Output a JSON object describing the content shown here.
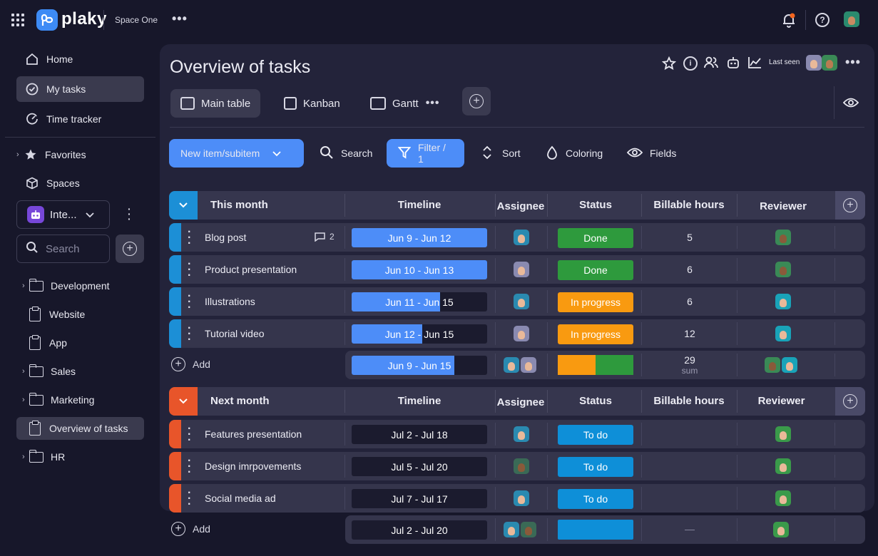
{
  "topbar": {
    "logo_text": "plaky",
    "space_name": "Space One",
    "more_label": "•••"
  },
  "sidebar": {
    "nav": [
      {
        "label": "Home",
        "icon": "home-icon"
      },
      {
        "label": "My tasks",
        "icon": "check-circle-icon"
      },
      {
        "label": "Time tracker",
        "icon": "clock-icon"
      }
    ],
    "favorites_label": "Favorites",
    "spaces_label": "Spaces",
    "workspace_label": "Inte...",
    "search_placeholder": "Search",
    "tree": [
      {
        "label": "Development",
        "type": "folder"
      },
      {
        "label": "Website",
        "type": "board"
      },
      {
        "label": "App",
        "type": "board"
      },
      {
        "label": "Sales",
        "type": "folder"
      },
      {
        "label": "Marketing",
        "type": "folder"
      },
      {
        "label": "Overview of tasks",
        "type": "board"
      },
      {
        "label": "HR",
        "type": "folder"
      }
    ]
  },
  "board": {
    "title": "Overview of tasks",
    "last_seen_label": "Last seen",
    "views": [
      {
        "label": "Main table"
      },
      {
        "label": "Kanban"
      },
      {
        "label": "Gantt"
      }
    ],
    "toolbar": {
      "new_item": "New item/subitem",
      "search": "Search",
      "filter": "Filter / 1",
      "sort": "Sort",
      "coloring": "Coloring",
      "fields": "Fields"
    }
  },
  "columns": {
    "timeline": "Timeline",
    "assignee": "Assignee",
    "status": "Status",
    "billable": "Billable hours",
    "reviewer": "Reviewer"
  },
  "groups": [
    {
      "name": "This month",
      "color": "#1c8fd6",
      "rows": [
        {
          "name": "Blog post",
          "comments": "2",
          "timeline": "Jun 9 - Jun 12",
          "fill": 1.0,
          "status": "Done",
          "status_color": "#2e9a3d",
          "hours": "5"
        },
        {
          "name": "Product presentation",
          "comments": "",
          "timeline": "Jun 10 - Jun 13",
          "fill": 1.0,
          "status": "Done",
          "status_color": "#2e9a3d",
          "hours": "6"
        },
        {
          "name": "Illustrations",
          "comments": "",
          "timeline": "Jun 11 - Jun 15",
          "fill": 0.65,
          "status": "In progress",
          "status_color": "#f99a10",
          "hours": "6"
        },
        {
          "name": "Tutorial video",
          "comments": "",
          "timeline": "Jun 12 - Jun 15",
          "fill": 0.52,
          "status": "In progress",
          "status_color": "#f99a10",
          "hours": "12"
        }
      ],
      "summary": {
        "timeline": "Jun 9 - Jun 15",
        "fill": 0.76,
        "hours": "29",
        "hours_sub": "sum"
      }
    },
    {
      "name": "Next month",
      "color": "#e8552a",
      "rows": [
        {
          "name": "Features presentation",
          "timeline": "Jul 2 - Jul 18",
          "fill": 0,
          "status": "To do",
          "status_color": "#0e8fd8",
          "hours": ""
        },
        {
          "name": "Design imrpovements",
          "timeline": "Jul 5  - Jul 20",
          "fill": 0,
          "status": "To do",
          "status_color": "#0e8fd8",
          "hours": ""
        },
        {
          "name": "Social media ad",
          "timeline": "Jul 7 - Jul 17",
          "fill": 0,
          "status": "To do",
          "status_color": "#0e8fd8",
          "hours": ""
        }
      ],
      "summary": {
        "timeline": "Jul 2 - Jul 20",
        "fill": 0,
        "hours": "—"
      }
    }
  ],
  "add_label": "Add"
}
